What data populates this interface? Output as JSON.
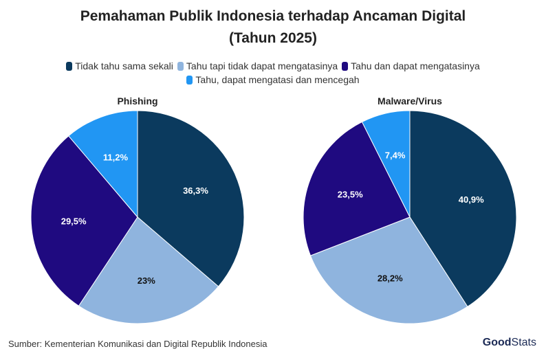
{
  "title_line1": "Pemahaman Publik Indonesia terhadap Ancaman Digital",
  "title_line2": "(Tahun 2025)",
  "source": "Sumber: Kementerian Komunikasi dan Digital Republik Indonesia",
  "logo": {
    "bold": "Good",
    "regular": "Stats"
  },
  "chart_data": [
    {
      "type": "pie",
      "title": "Phishing",
      "categories": [
        "Tidak tahu sama sekali",
        "Tahu tapi tidak dapat mengatasinya",
        "Tahu dan dapat mengatasinya",
        "Tahu, dapat mengatasi dan mencegah"
      ],
      "values": [
        36.3,
        23,
        29.5,
        11.2
      ],
      "labels": [
        "36,3%",
        "23%",
        "29,5%",
        "11,2%"
      ],
      "colors": [
        "#0b3a5e",
        "#8fb4de",
        "#1f0a80",
        "#2196f3"
      ],
      "legend": "top"
    },
    {
      "type": "pie",
      "title": "Malware/Virus",
      "categories": [
        "Tidak tahu sama sekali",
        "Tahu tapi tidak dapat mengatasinya",
        "Tahu dan dapat mengatasinya",
        "Tahu, dapat mengatasi dan mencegah"
      ],
      "values": [
        40.9,
        28.2,
        23.5,
        7.4
      ],
      "labels": [
        "40,9%",
        "28,2%",
        "23,5%",
        "7,4%"
      ],
      "colors": [
        "#0b3a5e",
        "#8fb4de",
        "#1f0a80",
        "#2196f3"
      ],
      "legend": "top"
    }
  ]
}
